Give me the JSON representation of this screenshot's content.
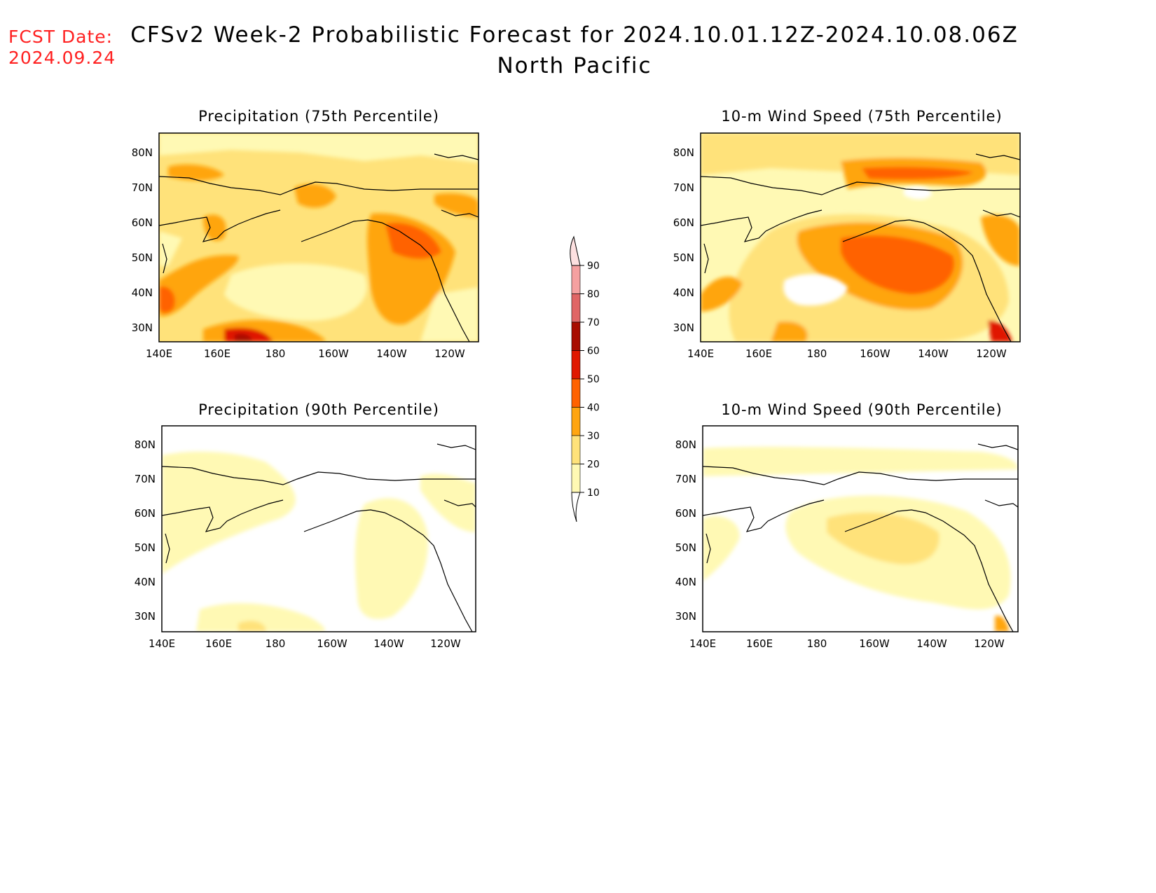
{
  "header": {
    "fcst_label": "FCST Date:",
    "fcst_date": "2024.09.24",
    "title": "CFSv2 Week-2 Probabilistic Forecast for 2024.10.01.12Z-2024.10.08.06Z",
    "subtitle": "North Pacific"
  },
  "axes": {
    "lat_labels": [
      "80N",
      "70N",
      "60N",
      "50N",
      "40N",
      "30N"
    ],
    "lon_labels": [
      "140E",
      "160E",
      "180",
      "160W",
      "140W",
      "120W"
    ]
  },
  "panels": [
    {
      "id": "precip75",
      "title": "Precipitation (75th Percentile)"
    },
    {
      "id": "wind75",
      "title": "10-m Wind Speed (75th Percentile)"
    },
    {
      "id": "precip90",
      "title": "Precipitation (90th Percentile)"
    },
    {
      "id": "wind90",
      "title": "10-m Wind Speed (90th Percentile)"
    }
  ],
  "colorbar": {
    "levels": [
      "10",
      "20",
      "30",
      "40",
      "50",
      "60",
      "70",
      "80",
      "90"
    ],
    "colors": [
      "#fff9b4",
      "#ffe27a",
      "#ffa510",
      "#ff6200",
      "#e01800",
      "#a80c00",
      "#e06666",
      "#f5a0a0",
      "#fde0e0"
    ]
  }
}
